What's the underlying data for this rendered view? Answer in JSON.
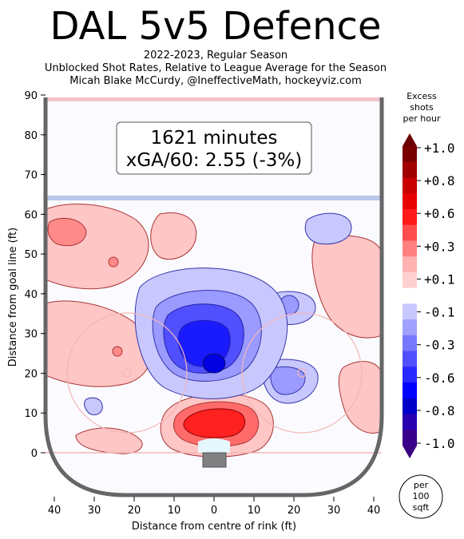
{
  "header": {
    "title": "DAL 5v5 Defence",
    "subtitle_lines": [
      "2022-2023, Regular Season",
      "Unblocked Shot Rates, Relative to League Average for the Season",
      "Micah Blake McCurdy, @IneffectiveMath, hockeyviz.com"
    ]
  },
  "annotation": {
    "minutes": "1621 minutes",
    "xga": "xGA/60: 2.55 (-3%)"
  },
  "chart_data": {
    "type": "heatmap",
    "title": "DAL 5v5 Defence",
    "xlabel": "Distance from centre of rink (ft)",
    "ylabel": "Distance from goal line (ft)",
    "xlim": [
      -42,
      42
    ],
    "ylim": [
      -11,
      90
    ],
    "x_ticks": [
      "40",
      "30",
      "20",
      "10",
      "0",
      "10",
      "20",
      "30",
      "40"
    ],
    "y_ticks": [
      "0",
      "10",
      "20",
      "30",
      "40",
      "50",
      "60",
      "70",
      "80",
      "90"
    ],
    "colorbar": {
      "title_lines": [
        "Excess",
        "shots",
        "per hour"
      ],
      "tick_labels": [
        "+1.0",
        "+0.8",
        "+0.6",
        "+0.3",
        "+0.1",
        "-0.1",
        "-0.3",
        "-0.6",
        "-0.8",
        "-1.0"
      ],
      "range": [
        -1.0,
        1.0
      ],
      "unit_lines": [
        "per",
        "100",
        "sqft"
      ]
    },
    "hotspots": [
      {
        "x": 0,
        "y": 22,
        "value": -1.0,
        "note": "slot, strong blue"
      },
      {
        "x": 0,
        "y": 10,
        "value": 0.9,
        "note": "crease area, strong red"
      },
      {
        "x": 20,
        "y": 20,
        "value": -0.3
      },
      {
        "x": 20,
        "y": 37,
        "value": -0.3
      },
      {
        "x": 26,
        "y": 56,
        "value": -0.1
      },
      {
        "x": -37,
        "y": 55,
        "value": 0.3
      },
      {
        "x": -25,
        "y": 26,
        "value": 0.3
      },
      {
        "x": -30,
        "y": 40,
        "value": 0.1
      },
      {
        "x": 35,
        "y": 40,
        "value": 0.1
      }
    ]
  }
}
